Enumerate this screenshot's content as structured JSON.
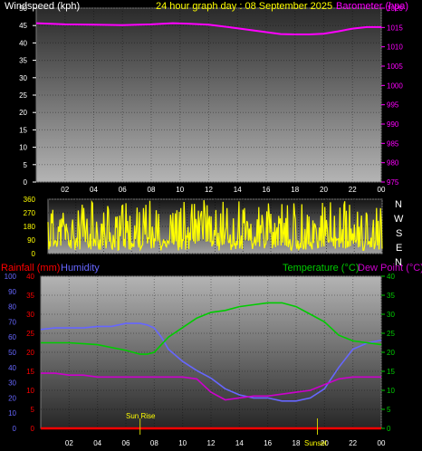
{
  "header": {
    "title": "24 hour graph day : 08 September 2025",
    "wind_label": "Windspeed (kph)",
    "baro_label": "Barometer (hpa)"
  },
  "panel3_labels": {
    "rain": "Rainfall (mm)",
    "humidity": "Humidity",
    "temperature": "Temperature (°C)",
    "dewpoint": "Dew Point (°C)"
  },
  "events": {
    "sunrise": "Sun Rise",
    "sunset": "Sunset"
  },
  "compass": [
    "N",
    "W",
    "S",
    "E",
    "N"
  ],
  "colors": {
    "wind": "#ffff00",
    "barometer": "#ff00ff",
    "rain": "#ff0000",
    "humidity": "#6666ff",
    "temperature": "#00cc00",
    "dewpoint": "#cc00cc",
    "text": "#ffffff",
    "direction": "#ffff00"
  },
  "chart_data": [
    {
      "type": "line",
      "title": "24 hour graph day : 08 September 2025",
      "x_ticks": [
        "02",
        "04",
        "06",
        "08",
        "10",
        "12",
        "14",
        "16",
        "18",
        "20",
        "22",
        "00"
      ],
      "y_left": {
        "label": "Windspeed (kph)",
        "range": [
          0,
          50
        ],
        "ticks": [
          0,
          5,
          10,
          15,
          20,
          25,
          30,
          35,
          40,
          45,
          50
        ]
      },
      "y_right": {
        "label": "Barometer (hpa)",
        "range": [
          975,
          1020
        ],
        "ticks": [
          975,
          980,
          985,
          990,
          995,
          1000,
          1005,
          1010,
          1015,
          1020
        ]
      },
      "series": [
        {
          "name": "Barometer (hpa)",
          "axis": "right",
          "x": [
            0,
            2,
            4,
            6,
            8,
            9.5,
            10.5,
            12,
            14,
            16,
            17,
            18,
            19,
            20,
            21,
            22,
            23,
            24
          ],
          "values": [
            1016.1,
            1015.8,
            1015.7,
            1015.6,
            1015.8,
            1016.1,
            1016.0,
            1015.7,
            1014.8,
            1013.8,
            1013.3,
            1013.2,
            1013.2,
            1013.4,
            1014.0,
            1014.7,
            1015.1,
            1015.1
          ]
        }
      ]
    },
    {
      "type": "line",
      "x_ticks": [
        "02",
        "04",
        "06",
        "08",
        "10",
        "12",
        "14",
        "16",
        "18",
        "20",
        "22",
        "00"
      ],
      "y_ticks": [
        "0",
        "90",
        "180",
        "270",
        "360"
      ],
      "y_range": [
        0,
        360
      ],
      "grid": true
    },
    {
      "type": "line",
      "x_ticks": [
        "02",
        "04",
        "06",
        "08",
        "10",
        "12",
        "14",
        "16",
        "18",
        "20",
        "22",
        "00"
      ],
      "axes": {
        "humidity": {
          "range": [
            0,
            100
          ],
          "ticks": [
            0,
            10,
            20,
            30,
            40,
            50,
            60,
            70,
            80,
            90,
            100
          ]
        },
        "rainfall": {
          "range": [
            0,
            40
          ],
          "ticks": [
            0,
            5,
            10,
            15,
            20,
            25,
            30,
            35,
            40
          ]
        },
        "temperature": {
          "range": [
            0,
            40
          ],
          "ticks": [
            0,
            5,
            10,
            15,
            20,
            25,
            30,
            35,
            40
          ]
        }
      },
      "series": [
        {
          "name": "Humidity",
          "axis": "humidity",
          "x": [
            0,
            1,
            2,
            3,
            4,
            5,
            6,
            7,
            7.5,
            8,
            8.5,
            9,
            10,
            11,
            12,
            13,
            14,
            15,
            16,
            17,
            18,
            19,
            20,
            21,
            22,
            23,
            24
          ],
          "values": [
            65,
            66,
            66,
            66,
            67,
            67,
            69,
            69,
            68,
            66,
            60,
            52,
            44,
            38,
            33,
            26,
            22,
            20,
            20,
            18,
            18,
            20,
            26,
            40,
            52,
            56,
            58
          ]
        },
        {
          "name": "Temperature (°C)",
          "axis": "temperature",
          "x": [
            0,
            1,
            2,
            4,
            6,
            7,
            7.5,
            8,
            8.5,
            9,
            10,
            11,
            12,
            13,
            14,
            15,
            16,
            17,
            18,
            19,
            20,
            21,
            22,
            23,
            24
          ],
          "values": [
            22.5,
            22.5,
            22.5,
            22,
            20.5,
            19.5,
            19.5,
            20,
            22,
            24,
            26.5,
            29,
            30.5,
            31,
            32,
            32.5,
            33,
            33,
            32,
            30,
            28,
            24.5,
            23,
            22.5,
            22
          ]
        },
        {
          "name": "Dew Point (°C)",
          "axis": "temperature",
          "x": [
            0,
            1,
            2,
            3,
            4,
            5,
            6,
            7,
            8,
            9,
            10,
            11,
            12,
            13,
            14,
            15,
            16,
            17,
            18,
            19,
            20,
            21,
            22,
            23,
            24
          ],
          "values": [
            14.5,
            14.5,
            14,
            14,
            13.5,
            13.5,
            13.5,
            13.5,
            13.5,
            13.5,
            13.5,
            13,
            9.5,
            7.5,
            8,
            8.5,
            8.5,
            9,
            9.5,
            10,
            11.5,
            13,
            13.5,
            13.5,
            13.5
          ]
        },
        {
          "name": "Rainfall (mm)",
          "axis": "rainfall",
          "x": [
            0,
            24
          ],
          "values": [
            0,
            0
          ]
        }
      ],
      "annotations": [
        {
          "label": "Sun Rise",
          "x": 7
        },
        {
          "label": "Sunset",
          "x": 19.5
        }
      ]
    }
  ]
}
